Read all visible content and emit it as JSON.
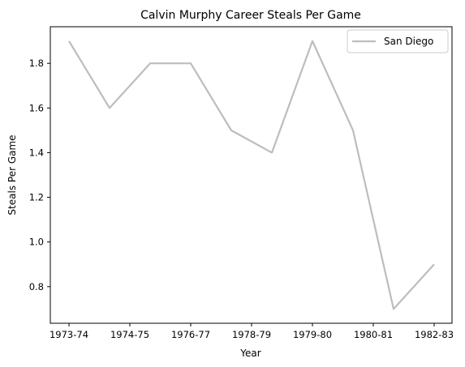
{
  "chart_data": {
    "type": "line",
    "title": "Calvin Murphy Career Steals Per Game",
    "xlabel": "Year",
    "ylabel": "Steals Per Game",
    "x_ticks": [
      "1973-74",
      "1974-75",
      "1976-77",
      "1978-79",
      "1979-80",
      "1980-81",
      "1982-83"
    ],
    "y_ticks": [
      "0.8",
      "1.0",
      "1.2",
      "1.4",
      "1.6",
      "1.8"
    ],
    "ylim": [
      0.636,
      1.964
    ],
    "legend_position": "upper right",
    "grid": false,
    "series": [
      {
        "name": "San Diego",
        "color": "#bdbdbd",
        "values": [
          1.9,
          1.6,
          1.8,
          1.8,
          1.5,
          1.4,
          1.9,
          1.5,
          0.7,
          0.9
        ]
      }
    ]
  }
}
